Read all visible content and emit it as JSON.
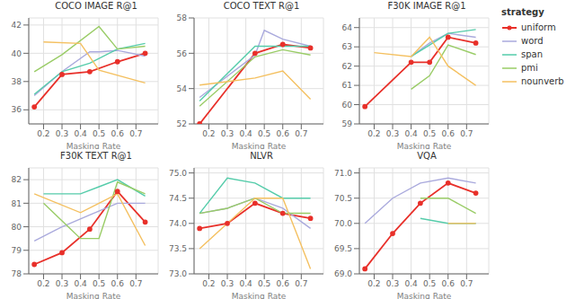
{
  "chart_data": [
    {
      "type": "line",
      "title": "COCO IMAGE R@1",
      "x_label": "Masking Rate",
      "xlim": [
        0.12,
        0.82
      ],
      "xticks": [
        0.2,
        0.3,
        0.4,
        0.5,
        0.6,
        0.7
      ],
      "ylim": [
        35,
        42.5
      ],
      "yticks": [
        36,
        38,
        40,
        42
      ],
      "grid": true,
      "legend": "upper right",
      "legend_title": "strategy",
      "series": [
        {
          "name": "uniform",
          "color": "#e8302a",
          "marker": "o",
          "x": [
            0.15,
            0.3,
            0.45,
            0.6,
            0.75
          ],
          "values": [
            36.2,
            38.5,
            38.7,
            39.4,
            40.0
          ]
        },
        {
          "name": "word",
          "color": "#aaaadd",
          "x": [
            0.15,
            0.3,
            0.45,
            0.5,
            0.6,
            0.75
          ],
          "values": [
            37.0,
            38.7,
            40.1,
            40.1,
            40.2,
            39.8
          ]
        },
        {
          "name": "span",
          "color": "#55ccaa",
          "x": [
            0.15,
            0.3,
            0.45,
            0.6,
            0.75
          ],
          "values": [
            37.1,
            38.7,
            39.3,
            40.3,
            40.7
          ]
        },
        {
          "name": "pmi",
          "color": "#99cc66",
          "x": [
            0.15,
            0.3,
            0.5,
            0.6,
            0.75
          ],
          "values": [
            38.7,
            39.9,
            41.9,
            40.3,
            40.5
          ]
        },
        {
          "name": "nounverb",
          "color": "#f4c060",
          "x": [
            0.2,
            0.4,
            0.5,
            0.75
          ],
          "values": [
            40.8,
            40.7,
            38.8,
            37.9
          ]
        }
      ]
    },
    {
      "type": "line",
      "title": "COCO TEXT R@1",
      "x_label": "Masking Rate",
      "xlim": [
        0.12,
        0.82
      ],
      "xticks": [
        0.2,
        0.3,
        0.4,
        0.5,
        0.6,
        0.7
      ],
      "ylim": [
        52,
        58
      ],
      "yticks": [
        52,
        54,
        56,
        58
      ],
      "grid": true,
      "series": [
        {
          "name": "uniform",
          "color": "#e8302a",
          "marker": "o",
          "x": [
            0.15,
            0.45,
            0.6,
            0.75
          ],
          "values": [
            52.0,
            56.0,
            56.5,
            56.3
          ]
        },
        {
          "name": "word",
          "color": "#aaaadd",
          "x": [
            0.15,
            0.45,
            0.5,
            0.6,
            0.75
          ],
          "values": [
            53.5,
            55.9,
            57.3,
            56.8,
            56.4
          ]
        },
        {
          "name": "span",
          "color": "#55ccaa",
          "x": [
            0.15,
            0.45,
            0.6,
            0.75
          ],
          "values": [
            53.3,
            56.4,
            56.4,
            56.4
          ]
        },
        {
          "name": "pmi",
          "color": "#99cc66",
          "x": [
            0.15,
            0.45,
            0.6,
            0.75
          ],
          "values": [
            53.0,
            55.8,
            56.2,
            55.9
          ]
        },
        {
          "name": "nounverb",
          "color": "#f4c060",
          "x": [
            0.15,
            0.45,
            0.6,
            0.75
          ],
          "values": [
            54.2,
            54.6,
            55.0,
            53.4
          ]
        }
      ]
    },
    {
      "type": "line",
      "title": "F30K IMAGE R@1",
      "x_label": "Masking Rate",
      "xlim": [
        0.12,
        0.82
      ],
      "xticks": [
        0.2,
        0.3,
        0.4,
        0.5,
        0.6,
        0.7
      ],
      "ylim": [
        59,
        64.5
      ],
      "yticks": [
        59,
        60,
        61,
        62,
        63,
        64
      ],
      "grid": true,
      "series": [
        {
          "name": "uniform",
          "color": "#e8302a",
          "marker": "o",
          "x": [
            0.15,
            0.4,
            0.5,
            0.6,
            0.75
          ],
          "values": [
            59.9,
            62.2,
            62.2,
            63.5,
            63.2
          ]
        },
        {
          "name": "word",
          "color": "#aaaadd",
          "x": [
            0.4,
            0.5,
            0.6,
            0.75
          ],
          "values": [
            62.5,
            63.2,
            63.7,
            63.5
          ]
        },
        {
          "name": "span",
          "color": "#55ccaa",
          "x": [
            0.4,
            0.5,
            0.6,
            0.75
          ],
          "values": [
            62.5,
            63.1,
            63.7,
            63.9
          ]
        },
        {
          "name": "pmi",
          "color": "#99cc66",
          "x": [
            0.4,
            0.5,
            0.6,
            0.75
          ],
          "values": [
            60.8,
            61.5,
            63.1,
            62.6
          ]
        },
        {
          "name": "nounverb",
          "color": "#f4c060",
          "x": [
            0.2,
            0.4,
            0.5,
            0.6,
            0.75
          ],
          "values": [
            62.7,
            62.5,
            63.5,
            62.0,
            61.0
          ]
        }
      ]
    },
    {
      "type": "line",
      "title": "F30K TEXT R@1",
      "x_label": "Masking Rate",
      "xlim": [
        0.12,
        0.82
      ],
      "xticks": [
        0.2,
        0.3,
        0.4,
        0.5,
        0.6,
        0.7
      ],
      "ylim": [
        78,
        82.5
      ],
      "yticks": [
        78,
        79,
        80,
        81,
        82
      ],
      "grid": true,
      "series": [
        {
          "name": "uniform",
          "color": "#e8302a",
          "marker": "o",
          "x": [
            0.15,
            0.3,
            0.45,
            0.6,
            0.75
          ],
          "values": [
            78.4,
            78.9,
            79.9,
            81.5,
            80.2
          ]
        },
        {
          "name": "word",
          "color": "#aaaadd",
          "x": [
            0.15,
            0.3,
            0.45,
            0.6,
            0.75
          ],
          "values": [
            79.4,
            80.0,
            80.5,
            81.0,
            81.0
          ]
        },
        {
          "name": "span",
          "color": "#55ccaa",
          "x": [
            0.2,
            0.4,
            0.5,
            0.6,
            0.75
          ],
          "values": [
            81.4,
            81.4,
            81.7,
            82.0,
            81.3
          ]
        },
        {
          "name": "pmi",
          "color": "#99cc66",
          "x": [
            0.2,
            0.4,
            0.5,
            0.6,
            0.75
          ],
          "values": [
            81.0,
            79.5,
            79.5,
            81.9,
            81.4
          ]
        },
        {
          "name": "nounverb",
          "color": "#f4c060",
          "x": [
            0.15,
            0.4,
            0.5,
            0.6,
            0.75
          ],
          "values": [
            81.4,
            80.6,
            81.0,
            81.4,
            79.2
          ]
        }
      ]
    },
    {
      "type": "line",
      "title": "NLVR",
      "x_label": "Masking Rate",
      "xlim": [
        0.12,
        0.82
      ],
      "xticks": [
        0.2,
        0.3,
        0.4,
        0.5,
        0.6,
        0.7
      ],
      "ylim": [
        73.0,
        75.1
      ],
      "yticks": [
        {
          "value": 73.0,
          "label": "73.0"
        },
        73.5,
        {
          "value": 74.0,
          "label": "74.0"
        },
        74.5,
        {
          "value": 75.0,
          "label": "75.0"
        }
      ],
      "grid": true,
      "series": [
        {
          "name": "uniform",
          "color": "#e8302a",
          "marker": "o",
          "x": [
            0.15,
            0.3,
            0.45,
            0.6,
            0.75
          ],
          "values": [
            73.9,
            74.0,
            74.4,
            74.2,
            74.1
          ]
        },
        {
          "name": "word",
          "color": "#aaaadd",
          "x": [
            0.15,
            0.3,
            0.45,
            0.6,
            0.75
          ],
          "values": [
            74.2,
            74.3,
            74.5,
            74.3,
            73.9
          ]
        },
        {
          "name": "span",
          "color": "#55ccaa",
          "x": [
            0.15,
            0.3,
            0.45,
            0.6,
            0.75
          ],
          "values": [
            74.2,
            74.9,
            74.8,
            74.5,
            74.5
          ]
        },
        {
          "name": "pmi",
          "color": "#99cc66",
          "x": [
            0.15,
            0.3,
            0.45,
            0.6,
            0.75
          ],
          "values": [
            74.2,
            74.3,
            74.5,
            74.2,
            74.2
          ]
        },
        {
          "name": "nounverb",
          "color": "#f4c060",
          "x": [
            0.15,
            0.45,
            0.6,
            0.75
          ],
          "values": [
            73.5,
            74.5,
            74.5,
            73.1
          ]
        }
      ]
    },
    {
      "type": "line",
      "title": "VQA",
      "x_label": "Masking Rate",
      "xlim": [
        0.12,
        0.82
      ],
      "xticks": [
        0.2,
        0.3,
        0.4,
        0.5,
        0.6,
        0.7
      ],
      "ylim": [
        69.0,
        71.1
      ],
      "yticks": [
        {
          "value": 69.0,
          "label": "69.0"
        },
        69.5,
        {
          "value": 70.0,
          "label": "70.0"
        },
        70.5,
        {
          "value": 71.0,
          "label": "71.0"
        }
      ],
      "grid": true,
      "series": [
        {
          "name": "uniform",
          "color": "#e8302a",
          "marker": "o",
          "x": [
            0.15,
            0.3,
            0.45,
            0.6,
            0.75
          ],
          "values": [
            69.1,
            69.8,
            70.4,
            70.8,
            70.6
          ]
        },
        {
          "name": "word",
          "color": "#aaaadd",
          "x": [
            0.15,
            0.3,
            0.45,
            0.6,
            0.75
          ],
          "values": [
            70.0,
            70.5,
            70.8,
            70.9,
            70.8
          ]
        },
        {
          "name": "span",
          "color": "#55ccaa",
          "x": [
            0.45,
            0.6,
            0.75
          ],
          "values": [
            70.1,
            70.0,
            70.0
          ]
        },
        {
          "name": "pmi",
          "color": "#99cc66",
          "x": [
            0.45,
            0.6,
            0.75
          ],
          "values": [
            70.5,
            70.5,
            70.2
          ]
        },
        {
          "name": "nounverb",
          "color": "#f4c060",
          "x": [
            0.6,
            0.75
          ],
          "values": [
            70.0,
            70.0
          ]
        }
      ]
    }
  ]
}
